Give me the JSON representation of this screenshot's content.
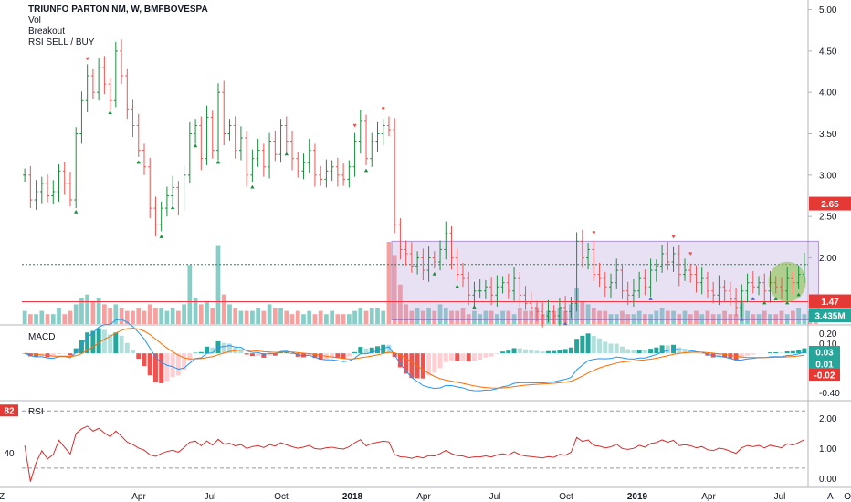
{
  "legend": {
    "symbol": "TRIUNFO PARTON NM, W, BMFBOVESPA",
    "studies": [
      "Vol",
      "Breakout",
      "RSI SELL / BUY"
    ]
  },
  "colors": {
    "up": "#26a69a",
    "up_candle": "#1b8e3e",
    "down": "#ef5350",
    "level_line": "#f23645",
    "box_fill": "#b39ddb",
    "macd_line": "#2196f3",
    "signal_line": "#ff6d00",
    "rsi_line": "#d32f2f",
    "highlight": "#8bc34a"
  },
  "chart_data": [
    {
      "type": "candlestick",
      "pane": "price",
      "ylim": [
        1.2,
        5.05
      ],
      "y_ticks": [
        "5.00",
        "4.50",
        "4.00",
        "3.50",
        "3.00",
        "2.50",
        "2.00"
      ],
      "x_ticks": [
        "Z",
        "Apr",
        "Jul",
        "Oct",
        "2018",
        "Apr",
        "Jul",
        "Oct",
        "2019",
        "Apr",
        "Jul",
        "Oct"
      ],
      "x_ticks_bold": [
        "2018",
        "2019"
      ],
      "corner_labels": {
        "left": "Z",
        "right": "A"
      },
      "close": [
        3.0,
        2.7,
        2.8,
        2.9,
        2.75,
        2.8,
        3.05,
        2.9,
        2.7,
        3.5,
        3.9,
        4.2,
        4.0,
        4.3,
        4.1,
        3.9,
        4.5,
        4.2,
        3.8,
        3.6,
        3.3,
        3.1,
        2.6,
        2.4,
        2.6,
        2.75,
        2.85,
        2.65,
        3.0,
        3.5,
        3.6,
        3.2,
        3.7,
        3.3,
        4.0,
        3.5,
        3.6,
        3.3,
        3.45,
        3.0,
        3.2,
        3.3,
        3.1,
        3.4,
        3.25,
        3.6,
        3.4,
        3.2,
        3.05,
        3.15,
        3.3,
        3.0,
        2.95,
        3.05,
        3.1,
        3.0,
        2.95,
        3.1,
        3.4,
        3.65,
        3.2,
        3.4,
        3.5,
        3.6,
        3.55,
        2.4,
        2.1,
        2.05,
        1.9,
        2.0,
        1.85,
        2.0,
        1.95,
        2.1,
        2.3,
        2.0,
        1.8,
        1.75,
        1.55,
        1.6,
        1.6,
        1.65,
        1.55,
        1.65,
        1.7,
        1.6,
        1.75,
        1.55,
        1.45,
        1.4,
        1.35,
        1.3,
        1.35,
        1.3,
        1.4,
        1.35,
        1.45,
        2.2,
        2.0,
        2.1,
        1.8,
        1.75,
        1.65,
        1.7,
        1.85,
        1.6,
        1.55,
        1.6,
        1.75,
        1.65,
        1.85,
        1.9,
        2.05,
        1.95,
        2.05,
        1.8,
        1.85,
        1.8,
        1.7,
        1.75,
        1.6,
        1.55,
        1.65,
        1.6,
        1.5,
        1.4,
        1.6,
        1.7,
        1.65,
        1.7,
        1.6,
        1.7,
        1.65,
        1.6,
        1.75,
        1.7,
        1.8,
        1.92
      ],
      "levels": [
        2.65,
        1.47
      ],
      "level_labels": [
        "2.65",
        "1.47"
      ],
      "last_close": 1.92,
      "range_box": {
        "start_index": 65,
        "end_index": 139,
        "top": 2.2,
        "bottom": 1.25
      },
      "highlight_value_range": [
        1.5,
        1.92
      ],
      "sell_markers_at": [
        11,
        58,
        63,
        100,
        114,
        117
      ],
      "buy_markers_at": [
        9,
        15,
        20,
        24,
        26,
        30,
        34,
        40,
        46,
        60,
        72,
        76,
        79,
        95,
        110,
        126,
        128,
        130,
        132,
        134,
        136
      ]
    },
    {
      "type": "bar",
      "pane": "volume",
      "label": "3.435M",
      "values": [
        4,
        3,
        3,
        4,
        3,
        3,
        5,
        3,
        4,
        6,
        8,
        9,
        7,
        8,
        6,
        5,
        6,
        5,
        4,
        4,
        5,
        4,
        6,
        5,
        5,
        4,
        5,
        4,
        6,
        18,
        8,
        6,
        7,
        5,
        24,
        9,
        6,
        5,
        4,
        4,
        4,
        5,
        4,
        6,
        5,
        5,
        4,
        3,
        4,
        3,
        4,
        3,
        4,
        3,
        4,
        3,
        3,
        3,
        4,
        5,
        4,
        5,
        5,
        4,
        25,
        21,
        12,
        6,
        4,
        5,
        4,
        5,
        4,
        6,
        5,
        4,
        4,
        5,
        3,
        4,
        3,
        4,
        4,
        3,
        4,
        4,
        3,
        5,
        4,
        4,
        5,
        3,
        4,
        4,
        5,
        4,
        6,
        11,
        7,
        6,
        5,
        4,
        4,
        3,
        3,
        4,
        3,
        3,
        4,
        3,
        3,
        4,
        5,
        4,
        4,
        3,
        4,
        3,
        4,
        3,
        4,
        3,
        3,
        4,
        3,
        3,
        7,
        4,
        3,
        3,
        4,
        3,
        3,
        4,
        3,
        4,
        5,
        3,
        4,
        3
      ]
    },
    {
      "type": "line",
      "pane": "macd",
      "label": "MACD",
      "ylim": [
        -0.45,
        0.25
      ],
      "y_ticks": [
        "0.20",
        "0.10",
        "-0.40"
      ],
      "series_values": [
        "0.03",
        "0.01",
        "-0.02"
      ]
    },
    {
      "type": "line",
      "pane": "rsi",
      "label": "RSI",
      "ylim": [
        -0.2,
        2.5
      ],
      "y_ticks": [
        "2.00",
        "1.00",
        "0.00"
      ],
      "left_ticks": [
        "82",
        "40"
      ],
      "left_tick_values": [
        2.25,
        0.85
      ]
    }
  ]
}
